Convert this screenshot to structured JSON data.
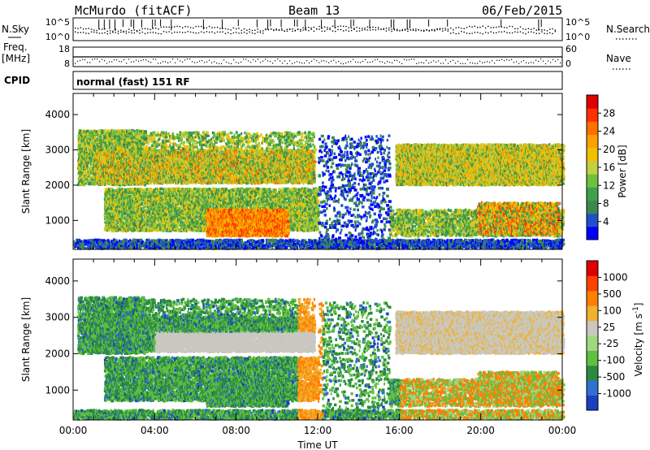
{
  "header": {
    "station": "McMurdo (fitACF)",
    "beam": "Beam 13",
    "date": "06/Feb/2015"
  },
  "strips": {
    "nsky_label": "N.Sky",
    "nsearch_label": "N.Search",
    "nsky_ticks": [
      "10^5",
      "10^0"
    ],
    "nsearch_ticks": [
      "10^5",
      "10^0"
    ],
    "freq_label": "Freq.",
    "freq_unit": "[MHz]",
    "freq_ticks": [
      "18",
      "8"
    ],
    "nave_label": "Nave",
    "nave_ticks": [
      "60",
      "0"
    ],
    "cpid_label": "CPID",
    "cpid_text": "normal (fast) 151 RF"
  },
  "chart_data": [
    {
      "type": "heatmap",
      "name": "power",
      "ylabel": "Slant Range [km]",
      "xlabel": "Time UT",
      "x_ticks": [
        "00:00",
        "04:00",
        "08:00",
        "12:00",
        "16:00",
        "20:00",
        "00:00"
      ],
      "y_ticks": [
        1000,
        2000,
        3000,
        4000
      ],
      "ylim": [
        180,
        4600
      ],
      "xlim_hours": [
        0,
        24
      ],
      "colorbar": {
        "label": "Power [dB]",
        "ticks": [
          "4",
          "8",
          "12",
          "16",
          "20",
          "24",
          "28"
        ],
        "colors": [
          "#0000ff",
          "#2050c8",
          "#3a8a50",
          "#3fa048",
          "#70c040",
          "#c0d040",
          "#f0c000",
          "#ffa000",
          "#ff7000",
          "#ff3000",
          "#e00000"
        ]
      }
    },
    {
      "type": "heatmap",
      "name": "velocity",
      "ylabel": "Slant Range [km]",
      "xlabel": "Time UT",
      "x_ticks": [
        "00:00",
        "04:00",
        "08:00",
        "12:00",
        "16:00",
        "20:00",
        "00:00"
      ],
      "y_ticks": [
        1000,
        2000,
        3000,
        4000
      ],
      "ylim": [
        180,
        4600
      ],
      "xlim_hours": [
        0,
        24
      ],
      "colorbar": {
        "label": "Velocity [m s^-1]",
        "ticks": [
          "1000",
          "500",
          "100",
          "25",
          "-25",
          "-100",
          "-500",
          "-1000"
        ],
        "colors": [
          "#1a40c0",
          "#3070d0",
          "#2a8a40",
          "#60c040",
          "#a0d880",
          "#c8c8c0",
          "#f0b030",
          "#ff8000",
          "#ff4000",
          "#e00000"
        ]
      }
    }
  ]
}
